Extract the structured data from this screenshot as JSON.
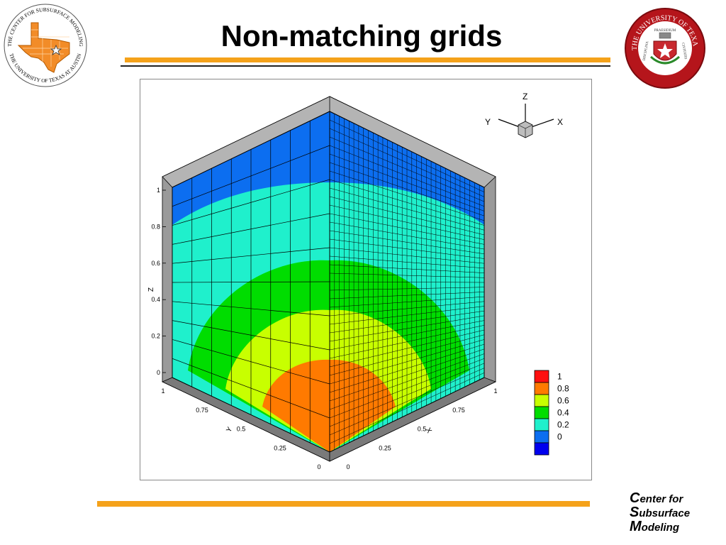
{
  "slide": {
    "title": "Non-matching grids",
    "left_logo": {
      "ring_text_top": "THE CENTER FOR SUBSURFACE MODELING",
      "ring_text_bottom": "THE UNIVERSITY OF TEXAS AT AUSTIN",
      "icon": "texas-map-with-star"
    },
    "right_logo": {
      "ring_text_top": "THE UNIVERSITY OF TEXAS",
      "ring_text_bottom": "AT AUSTIN",
      "motto_top": "PRAESIDIUM",
      "motto_left": "DISCIPLINA",
      "motto_right": "CIVITATIS",
      "icon": "ut-seal"
    },
    "footer_lines": [
      {
        "initial": "C",
        "rest": "enter for"
      },
      {
        "initial": "S",
        "rest": "ubsurface"
      },
      {
        "initial": "M",
        "rest": "odeling"
      }
    ]
  },
  "figure": {
    "z_axis_title": "Z",
    "z_ticks": [
      "0",
      "0.2",
      "0.4",
      "0.6",
      "0.8",
      "1"
    ],
    "y_axis_title": "Y",
    "y_ticks": [
      "1",
      "0.75",
      "0.5",
      "0.25",
      "0"
    ],
    "x_axis_title": "X",
    "x_ticks": [
      "0",
      "0.25",
      "0.5",
      "0.75",
      "1"
    ],
    "triad": {
      "z": "Z",
      "y": "Y",
      "x": "X"
    },
    "legend": [
      {
        "label": "1",
        "color": "#ff1010"
      },
      {
        "label": "0.8",
        "color": "#ff7a00"
      },
      {
        "label": "0.6",
        "color": "#c8ff00"
      },
      {
        "label": "0.4",
        "color": "#00dd00"
      },
      {
        "label": "0.2",
        "color": "#1ff0cc"
      },
      {
        "label": "0",
        "color": "#0c6ef0"
      },
      {
        "label": "",
        "color": "#0000ee"
      }
    ],
    "band_colors": {
      "band_0": "#0c6ef0",
      "band_02": "#1ff0cc",
      "band_04": "#00dd00",
      "band_06": "#c8ff00",
      "band_08": "#ff7a00"
    },
    "left_face_grid": "coarse",
    "right_face_grid": "fine"
  }
}
